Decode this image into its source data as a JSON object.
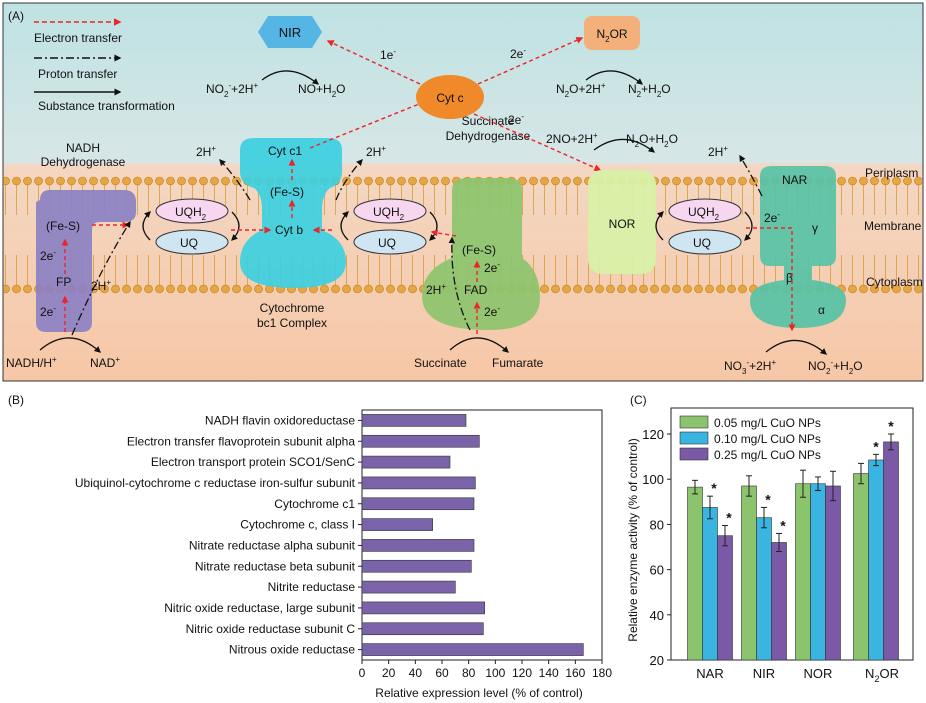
{
  "panel_a": {
    "label": "(A)",
    "legend": {
      "electron": "Electron transfer",
      "proton": "Proton transfer",
      "substance": "Substance transformation"
    },
    "regions": {
      "periplasm": "Periplasm",
      "membrane": "Membrane",
      "cytoplasm": "Cytoplasm"
    },
    "proteins": {
      "nadh_title1": "NADH",
      "nadh_title2": "Dehydrogenase",
      "fes": "(Fe-S)",
      "fp": "FP",
      "cytbc1_c1": "Cyt c1",
      "cytbc1_fes": "(Fe-S)",
      "cytbc1_b": "Cyt b",
      "cytbc1_title1": "Cytochrome",
      "cytbc1_title2": "bc1 Complex",
      "sdh_title1": "Succinate",
      "sdh_title2": "Dehydrogenase",
      "sdh_fes": "(Fe-S)",
      "sdh_fad": "FAD",
      "nor": "NOR",
      "nar": "NAR",
      "gamma": "γ",
      "beta": "β",
      "alpha": "α",
      "nir": "NIR",
      "n2or_n": "N",
      "n2or_sub": "2",
      "n2or_or": "OR",
      "cytc": "Cyt c",
      "uqh2": "UQH",
      "uqh2_sub": "2",
      "uq": "UQ"
    },
    "e_labels": {
      "two": "2e",
      "one": "1e",
      "minus": "-"
    },
    "h_labels": {
      "two_h": "2H",
      "plus": "+"
    },
    "reactions": {
      "nir_left": "NO",
      "nir_left_sub": "2",
      "nir_left_rest": "+2H",
      "nir_right": "NO+H",
      "nir_right_sub": "2",
      "nir_right_rest": "O",
      "n2or_left": "N",
      "n2or_left_sub": "2",
      "n2or_left_rest": "O+2H",
      "n2or_right": "N",
      "n2or_right_sub": "2",
      "n2or_right_rest": "+H",
      "n2or_right_sub2": "2",
      "n2or_right_end": "O",
      "nor_left": "2NO+2H",
      "nor_right": "N",
      "nor_right_sub": "2",
      "nor_right_rest": "O+H",
      "nor_right_sub2": "2",
      "nor_right_end": "O",
      "nadh_left": "NADH/H",
      "nadh_right": "NAD",
      "succ_left": "Succinate",
      "succ_right": "Fumarate",
      "nar_left": "NO",
      "nar_left_sub": "3",
      "nar_left_rest": "+2H",
      "nar_right": "NO",
      "nar_right_sub": "2",
      "nar_right_rest": "+H",
      "nar_right_sub2": "2",
      "nar_right_end": "O"
    }
  },
  "panel_b": {
    "label": "(B)",
    "chart_data": {
      "type": "bar",
      "orientation": "horizontal",
      "categories": [
        "NADH flavin oxidoreductase",
        "Electron transfer flavoprotein subunit alpha",
        "Electron transport protein SCO1/SenC",
        "Ubiquinol-cytochrome c reductase iron-sulfur subunit",
        "Cytochrome c1",
        "Cytochrome c, class I",
        "Nitrate reductase alpha subunit",
        "Nitrate reductase beta subunit",
        "Nitrite reductase",
        "Nitric oxide reductase, large subunit",
        "Nitric oxide reductase subunit C",
        "Nitrous oxide reductase"
      ],
      "values": [
        78,
        88,
        66,
        85,
        84,
        53,
        84,
        82,
        70,
        92,
        91,
        166
      ],
      "xlabel": "Relative expression level (% of control)",
      "xlim": [
        0,
        180
      ],
      "xticks": [
        "0",
        "20",
        "40",
        "60",
        "80",
        "100",
        "120",
        "140",
        "160",
        "180"
      ],
      "bar_color": "#7a63a8"
    }
  },
  "panel_c": {
    "label": "(C)",
    "chart_data": {
      "type": "bar",
      "categories": [
        "NAR",
        "NIR",
        "NOR",
        "N2OR"
      ],
      "category_labels": {
        "nar": "NAR",
        "nir": "NIR",
        "nor": "NOR",
        "n2or_n": "N",
        "n2or_sub": "2",
        "n2or_or": "OR"
      },
      "series": [
        {
          "name": "0.05 mg/L CuO NPs",
          "color": "#8cc46e",
          "values": [
            96.5,
            97,
            98,
            102.5
          ],
          "errors": [
            3,
            4.5,
            6,
            4.5
          ],
          "sig": [
            "",
            "",
            "",
            ""
          ]
        },
        {
          "name": "0.10 mg/L CuO NPs",
          "color": "#3ab4e0",
          "values": [
            87.5,
            83,
            98,
            108.5
          ],
          "errors": [
            5,
            4.5,
            3,
            2.5
          ],
          "sig": [
            "*",
            "*",
            "",
            "*"
          ]
        },
        {
          "name": "0.25 mg/L CuO NPs",
          "color": "#7a5aa6",
          "values": [
            75,
            72,
            97,
            116.5
          ],
          "errors": [
            4.5,
            4,
            6.5,
            3.5
          ],
          "sig": [
            "*",
            "*",
            "",
            "*"
          ]
        }
      ],
      "ylabel": "Relative enzyme activity (% of control)",
      "ylim": [
        20,
        120
      ],
      "yticks": [
        "20",
        "40",
        "60",
        "80",
        "100",
        "120"
      ],
      "sig_mark": "*"
    }
  }
}
